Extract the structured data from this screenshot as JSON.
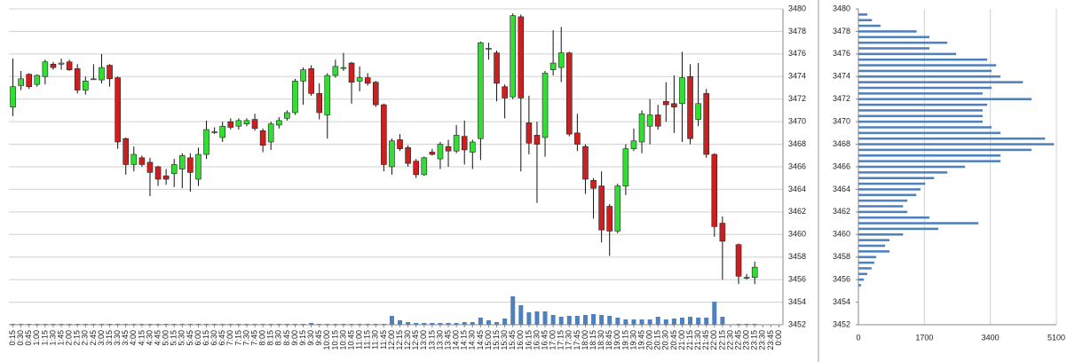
{
  "chart_data": [
    {
      "type": "candlestick",
      "categories": [
        "0:15",
        "0:30",
        "0:45",
        "1:00",
        "1:15",
        "1:30",
        "1:45",
        "2:00",
        "2:15",
        "2:30",
        "2:45",
        "3:00",
        "3:15",
        "3:30",
        "3:45",
        "4:00",
        "4:15",
        "4:30",
        "4:45",
        "5:00",
        "5:15",
        "5:30",
        "5:45",
        "6:00",
        "6:15",
        "6:30",
        "6:45",
        "7:00",
        "7:15",
        "7:30",
        "7:45",
        "8:00",
        "8:15",
        "8:30",
        "8:45",
        "9:00",
        "9:15",
        "9:30",
        "9:45",
        "10:00",
        "10:15",
        "10:30",
        "10:45",
        "11:00",
        "11:15",
        "11:30",
        "11:45",
        "12:00",
        "12:15",
        "12:30",
        "12:45",
        "13:00",
        "13:15",
        "13:30",
        "13:45",
        "14:00",
        "14:15",
        "14:30",
        "14:45",
        "15:00",
        "15:15",
        "15:30",
        "15:45",
        "16:00",
        "16:15",
        "16:30",
        "16:45",
        "17:00",
        "17:15",
        "17:30",
        "17:45",
        "18:00",
        "18:15",
        "18:30",
        "18:45",
        "19:00",
        "19:15",
        "19:30",
        "19:45",
        "20:00",
        "20:15",
        "20:30",
        "20:45",
        "21:00",
        "21:15",
        "21:30",
        "21:45",
        "22:00",
        "22:15",
        "22:30",
        "22:45",
        "23:00",
        "23:15",
        "23:30",
        "23:45",
        "0:00"
      ],
      "open": [
        3471.3,
        3473.2,
        3474.2,
        3473.3,
        3474,
        3475.1,
        3475.1,
        3475.3,
        3474.7,
        3472.8,
        3473.8,
        3473.7,
        3475,
        3473.9,
        3468.5,
        3466.2,
        3466.8,
        3466.4,
        3466,
        3465.2,
        3465.4,
        3465.8,
        3466.8,
        3464.9,
        3467.1,
        3469.1,
        3468.6,
        3470,
        3469.6,
        3469.8,
        3470.2,
        3469.2,
        3468.2,
        3469.7,
        3470.3,
        3470.8,
        3473.6,
        3474.7,
        3472.5,
        3470.6,
        3474.1,
        3474.8,
        3475.2,
        3473.6,
        3473.9,
        3473.5,
        3471.5,
        3466,
        3468.4,
        3467.7,
        3466.5,
        3465.3,
        3467.3,
        3466.7,
        3467.8,
        3467.4,
        3468.7,
        3467.3,
        3468.5,
        3476.5,
        3476.1,
        3473.1,
        3472.2,
        3479.3,
        3469.9,
        3468.8,
        3468.6,
        3474.6,
        3474.8,
        3476.1,
        3469,
        3467.8,
        3464.8,
        3464.3,
        3462.5,
        3460.3,
        3464.3,
        3467.6,
        3468.2,
        3469.6,
        3470.6,
        3471.8,
        3471.6,
        3471.6,
        3474,
        3470.2,
        3472.5,
        3467.1,
        3461,
        null,
        3459.1,
        3456.2,
        3456.2,
        null,
        null,
        null
      ],
      "high": [
        3475.6,
        3474.5,
        3474.3,
        3474.2,
        3475.5,
        3475.3,
        3475.6,
        3475.5,
        3475.1,
        3474,
        3475.1,
        3476,
        3475.1,
        3474,
        3468.6,
        3467.8,
        3467,
        3466.8,
        3466.1,
        3465.8,
        3466.7,
        3467.2,
        3467.2,
        3467.7,
        3470.1,
        3469.5,
        3470,
        3470.3,
        3470.3,
        3470.3,
        3470.7,
        3469.4,
        3470,
        3470.4,
        3471,
        3473.8,
        3474.8,
        3475,
        3473.4,
        3474.3,
        3475.5,
        3476.1,
        3475.3,
        3474.9,
        3474.3,
        3473.6,
        3471.6,
        3468.5,
        3468.9,
        3467.9,
        3466.7,
        3466.9,
        3467.6,
        3468.2,
        3468.4,
        3469.7,
        3470.1,
        3468.4,
        3477.1,
        3477,
        3476.3,
        3473.3,
        3479.6,
        3479.5,
        3472.3,
        3470,
        3474.5,
        3478.1,
        3478.4,
        3476.2,
        3470.7,
        3468,
        3465,
        3465.6,
        3462.7,
        3464.5,
        3468,
        3469.4,
        3471,
        3472,
        3471.5,
        3473.5,
        3474.1,
        3476.2,
        3475.1,
        3475.2,
        3472.9,
        3467.2,
        3461.6,
        null,
        3459.2,
        3456.5,
        3457.6,
        null,
        null,
        null
      ],
      "low": [
        3470.5,
        3472.8,
        3472.9,
        3473.1,
        3473.3,
        3474.6,
        3474.6,
        3474.5,
        3472.5,
        3472.4,
        3473.7,
        3473.4,
        3473.1,
        3467.6,
        3465.3,
        3465.6,
        3466,
        3463.4,
        3464.3,
        3464.4,
        3464.2,
        3464.1,
        3463.8,
        3464.3,
        3466.7,
        3468.9,
        3468.2,
        3469.3,
        3469.3,
        3469.6,
        3469.2,
        3467.3,
        3467.5,
        3469.4,
        3470.1,
        3470.6,
        3471.5,
        3472.3,
        3470.2,
        3468.5,
        3473.9,
        3474.5,
        3471.6,
        3472.7,
        3473.2,
        3471.3,
        3465.6,
        3465.3,
        3467.4,
        3466,
        3465,
        3465.2,
        3467,
        3465.8,
        3466,
        3467.2,
        3466.2,
        3465.8,
        3466.6,
        3475.5,
        3471.8,
        3470.3,
        3472,
        3465.6,
        3467.1,
        3462.8,
        3466.9,
        3474.1,
        3473.5,
        3468.7,
        3467.4,
        3463.6,
        3461.4,
        3459.3,
        3458.1,
        3460.1,
        3463.5,
        3467.4,
        3467.2,
        3468,
        3469.3,
        3470,
        3469,
        3468.2,
        3468,
        3469.6,
        3466.8,
        3459.8,
        3456,
        null,
        3455.6,
        3456,
        3455.6,
        null,
        null,
        null
      ],
      "close": [
        3473.1,
        3473.8,
        3473.1,
        3474.1,
        3475.3,
        3474.8,
        3475.2,
        3474.6,
        3472.8,
        3473.6,
        3473.8,
        3474.8,
        3473.8,
        3468.2,
        3466.2,
        3467.1,
        3466.2,
        3465.5,
        3464.9,
        3464.9,
        3466.2,
        3467,
        3465.5,
        3467.1,
        3469.3,
        3469.1,
        3469.6,
        3469.5,
        3470.1,
        3470.1,
        3469.4,
        3467.9,
        3469.8,
        3470.1,
        3470.8,
        3473.6,
        3474.6,
        3472.5,
        3470.8,
        3474.1,
        3474.9,
        3474.8,
        3473.5,
        3473.9,
        3473.4,
        3471.5,
        3466.2,
        3468.3,
        3467.6,
        3466.3,
        3465.3,
        3466.8,
        3467.1,
        3468,
        3467.4,
        3468.8,
        3467.5,
        3468.2,
        3477,
        3476.5,
        3473.4,
        3472.1,
        3479.4,
        3472.1,
        3468.1,
        3468,
        3474.3,
        3475.2,
        3476.1,
        3468.9,
        3468,
        3464.9,
        3464.1,
        3460.4,
        3460.3,
        3464.3,
        3467.6,
        3468.3,
        3470.7,
        3470.6,
        3469.6,
        3471.5,
        3471.3,
        3473.9,
        3468.5,
        3471.6,
        3467.1,
        3460.7,
        3459.4,
        null,
        3456.3,
        3456.2,
        3457.1,
        null,
        null,
        null
      ],
      "volume": [
        1,
        1,
        1,
        1,
        1,
        1,
        1,
        1,
        1,
        1,
        1,
        1,
        1,
        1,
        1,
        1,
        1,
        1,
        1,
        1,
        1,
        1,
        1,
        1,
        1,
        1,
        1,
        1,
        1,
        1,
        1,
        1,
        1,
        1,
        1,
        1,
        1,
        2,
        1,
        1,
        1,
        1,
        1,
        1,
        1,
        1,
        1,
        10,
        5,
        3,
        2,
        2,
        2,
        2,
        2,
        2,
        3,
        3,
        8,
        5,
        3,
        7,
        32,
        22,
        14,
        15,
        15,
        11,
        9,
        10,
        10,
        11,
        12,
        11,
        10,
        8,
        6,
        6,
        6,
        6,
        9,
        6,
        7,
        8,
        9,
        8,
        8,
        26,
        9,
        null,
        1,
        1,
        1,
        null,
        null,
        null
      ],
      "up_color": "#33dd33",
      "down_color": "#cc1f1f",
      "volume_color": "#4f81bd",
      "ylim": [
        3452,
        3480
      ],
      "yticks": [
        3452,
        3454,
        3456,
        3458,
        3460,
        3462,
        3464,
        3466,
        3468,
        3470,
        3472,
        3474,
        3476,
        3478,
        3480
      ],
      "grid": true
    },
    {
      "type": "hbar",
      "categories": [
        3479.5,
        3479,
        3478.5,
        3478,
        3477.5,
        3477,
        3476.5,
        3476,
        3475.5,
        3475,
        3474.5,
        3474,
        3473.5,
        3473,
        3472.5,
        3472,
        3471.5,
        3471,
        3470.5,
        3470,
        3469.5,
        3469,
        3468.5,
        3468,
        3467.5,
        3467,
        3466.5,
        3466,
        3465.5,
        3465,
        3464.5,
        3464,
        3463.5,
        3463,
        3462.5,
        3462,
        3461.5,
        3461,
        3460.5,
        3460,
        3459.5,
        3459,
        3458.5,
        3458,
        3457.5,
        3457,
        3456.5,
        3456,
        3455.5
      ],
      "values": [
        230,
        350,
        570,
        1500,
        1830,
        2290,
        1830,
        2520,
        3320,
        3550,
        3430,
        3660,
        4240,
        3430,
        3200,
        4460,
        3320,
        3200,
        3200,
        3200,
        3430,
        3660,
        4810,
        5040,
        4460,
        3660,
        3660,
        2750,
        2290,
        1950,
        1720,
        1600,
        1490,
        1260,
        1150,
        1260,
        1830,
        3090,
        2060,
        1150,
        800,
        690,
        800,
        460,
        410,
        340,
        230,
        140,
        70
      ],
      "color": "#4f81bd",
      "xlim": [
        0,
        5100
      ],
      "xticks": [
        0,
        1700,
        3400,
        5100
      ],
      "ylim": [
        3452,
        3480
      ],
      "yticks": [
        3452,
        3454,
        3456,
        3458,
        3460,
        3462,
        3464,
        3466,
        3468,
        3470,
        3472,
        3474,
        3476,
        3478,
        3480
      ],
      "grid": true
    }
  ]
}
